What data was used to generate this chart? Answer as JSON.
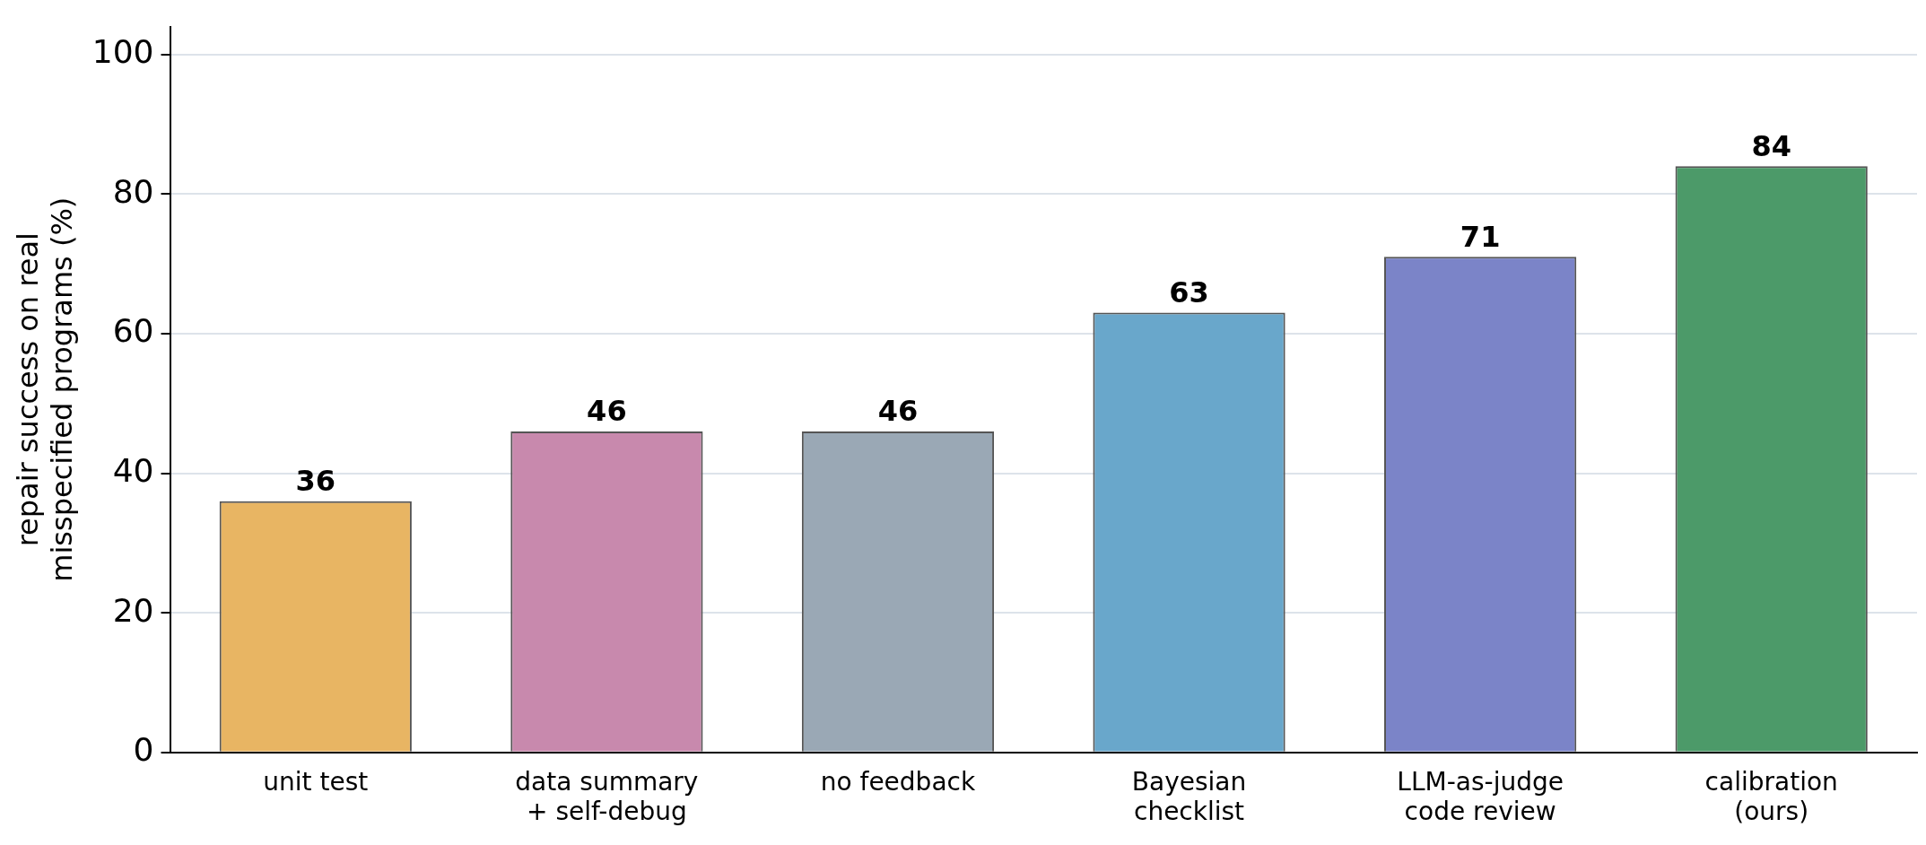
{
  "chart_data": {
    "type": "bar",
    "ylabel": "repair success on real\nmisspecified programs (%)",
    "categories": [
      "unit test",
      "data summary\n+ self-debug",
      "no feedback",
      "Bayesian\nchecklist",
      "LLM-as-judge\ncode review",
      "calibration\n(ours)"
    ],
    "values": [
      36,
      46,
      46,
      63,
      71,
      84
    ],
    "colors": [
      "#e8b563",
      "#c889ad",
      "#9aa8b5",
      "#69a7cb",
      "#7b84c8",
      "#4c9a69"
    ],
    "ylim": [
      0,
      104
    ],
    "yticks": [
      0,
      20,
      40,
      60,
      80,
      100
    ],
    "grid": "y",
    "legend": false,
    "data_labels": true
  }
}
